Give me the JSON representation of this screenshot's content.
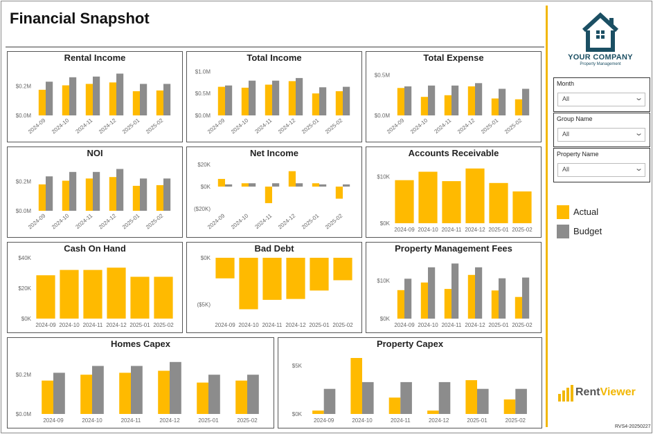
{
  "page": {
    "title": "Financial Snapshot",
    "version": "RVS4-20250227"
  },
  "company": {
    "name": "YOUR COMPANY",
    "subtitle": "Property Management"
  },
  "brand": {
    "rent": "Rent",
    "viewer": "Viewer"
  },
  "colors": {
    "actual": "#FFBA00",
    "budget": "#8C8C8C",
    "accent": "#F2B705",
    "logo": "#1B4F63",
    "axis": "#8A8A8A"
  },
  "filters": [
    {
      "label": "Month",
      "value": "All"
    },
    {
      "label": "Group Name",
      "value": "All"
    },
    {
      "label": "Property Name",
      "value": "All"
    }
  ],
  "legend": {
    "actual": "Actual",
    "budget": "Budget"
  },
  "icons": {
    "dropdown": "chevron-down-icon",
    "logo": "house-logo-icon",
    "brand": "bar-chart-logo-icon"
  },
  "chart_data": [
    {
      "title": "Rental Income",
      "type": "bar",
      "categories": [
        "2024-09",
        "2024-10",
        "2024-11",
        "2024-12",
        "2025-01",
        "2025-02"
      ],
      "ylim": [
        0,
        0.33
      ],
      "yticks": [
        0,
        0.2
      ],
      "ytick_labels": [
        "$0.0M",
        "$0.2M"
      ],
      "rotated_labels": true,
      "series": [
        {
          "name": "Actual",
          "values": [
            0.175,
            0.205,
            0.215,
            0.225,
            0.165,
            0.17
          ]
        },
        {
          "name": "Budget",
          "values": [
            0.23,
            0.26,
            0.265,
            0.285,
            0.215,
            0.215
          ]
        }
      ]
    },
    {
      "title": "Total Income",
      "type": "bar",
      "categories": [
        "2024-09",
        "2024-10",
        "2024-11",
        "2024-12",
        "2025-01",
        "2025-02"
      ],
      "ylim": [
        0,
        1.1
      ],
      "yticks": [
        0,
        0.5,
        1.0
      ],
      "ytick_labels": [
        "$0.0M",
        "$0.5M",
        "$1.0M"
      ],
      "rotated_labels": true,
      "series": [
        {
          "name": "Actual",
          "values": [
            0.65,
            0.63,
            0.7,
            0.78,
            0.5,
            0.55
          ]
        },
        {
          "name": "Budget",
          "values": [
            0.68,
            0.79,
            0.79,
            0.85,
            0.64,
            0.65
          ]
        }
      ]
    },
    {
      "title": "Total Expense",
      "type": "bar",
      "categories": [
        "2024-09",
        "2024-10",
        "2024-11",
        "2024-12",
        "2025-01",
        "2025-02"
      ],
      "ylim": [
        0,
        0.6
      ],
      "yticks": [
        0,
        0.5
      ],
      "ytick_labels": [
        "$0.0M",
        "$0.5M"
      ],
      "rotated_labels": true,
      "series": [
        {
          "name": "Actual",
          "values": [
            0.34,
            0.23,
            0.25,
            0.36,
            0.21,
            0.2
          ]
        },
        {
          "name": "Budget",
          "values": [
            0.36,
            0.37,
            0.37,
            0.4,
            0.33,
            0.33
          ]
        }
      ]
    },
    {
      "title": "NOI",
      "type": "bar",
      "categories": [
        "2024-09",
        "2024-10",
        "2024-11",
        "2024-12",
        "2025-01",
        "2025-02"
      ],
      "ylim": [
        0,
        0.33
      ],
      "yticks": [
        0,
        0.2
      ],
      "ytick_labels": [
        "$0.0M",
        "$0.2M"
      ],
      "rotated_labels": true,
      "series": [
        {
          "name": "Actual",
          "values": [
            0.18,
            0.205,
            0.22,
            0.23,
            0.17,
            0.175
          ]
        },
        {
          "name": "Budget",
          "values": [
            0.235,
            0.265,
            0.265,
            0.285,
            0.22,
            0.22
          ]
        }
      ]
    },
    {
      "title": "Net Income",
      "type": "bar",
      "categories": [
        "2024-09",
        "2024-10",
        "2024-11",
        "2024-12",
        "2025-01",
        "2025-02"
      ],
      "ylim": [
        -22,
        22
      ],
      "yticks": [
        -20,
        0,
        20
      ],
      "ytick_labels": [
        "($20K)",
        "$0K",
        "$20K"
      ],
      "rotated_labels": true,
      "series": [
        {
          "name": "Actual",
          "values": [
            7,
            3,
            -15,
            14,
            3,
            -11
          ]
        },
        {
          "name": "Budget",
          "values": [
            2,
            3,
            3,
            3,
            2,
            2
          ]
        }
      ]
    },
    {
      "title": "Accounts Receivable",
      "type": "bar",
      "categories": [
        "2024-09",
        "2024-10",
        "2024-11",
        "2024-12",
        "2025-01",
        "2025-02"
      ],
      "ylim": [
        0,
        13
      ],
      "yticks": [
        0,
        10
      ],
      "ytick_labels": [
        "$0K",
        "$10K"
      ],
      "rotated_labels": false,
      "series": [
        {
          "name": "Actual",
          "values": [
            9.2,
            11.0,
            9.0,
            11.7,
            8.6,
            6.8
          ]
        }
      ]
    },
    {
      "title": "Cash On Hand",
      "type": "bar",
      "categories": [
        "2024-09",
        "2024-10",
        "2024-11",
        "2024-12",
        "2025-01",
        "2025-02"
      ],
      "ylim": [
        0,
        40
      ],
      "yticks": [
        0,
        20,
        40
      ],
      "ytick_labels": [
        "$0K",
        "$20K",
        "$40K"
      ],
      "rotated_labels": false,
      "series": [
        {
          "name": "Actual",
          "values": [
            28.5,
            32,
            32,
            33.5,
            27.5,
            27.5
          ]
        }
      ]
    },
    {
      "title": "Bad Debt",
      "type": "bar",
      "categories": [
        "2024-09",
        "2024-10",
        "2024-11",
        "2024-12",
        "2025-01",
        "2025-02"
      ],
      "ylim": [
        -6.5,
        0
      ],
      "yticks": [
        -5,
        0
      ],
      "ytick_labels": [
        "($5K)",
        "$0K"
      ],
      "rotated_labels": false,
      "series": [
        {
          "name": "Actual",
          "values": [
            -2.2,
            -5.5,
            -4.5,
            -4.4,
            -3.5,
            -2.4
          ]
        }
      ]
    },
    {
      "title": "Property Management Fees",
      "type": "bar",
      "categories": [
        "2024-09",
        "2024-10",
        "2024-11",
        "2024-12",
        "2025-01",
        "2025-02"
      ],
      "ylim": [
        0,
        16
      ],
      "yticks": [
        0,
        10
      ],
      "ytick_labels": [
        "$0K",
        "$10K"
      ],
      "rotated_labels": false,
      "series": [
        {
          "name": "Actual",
          "values": [
            7.5,
            9.5,
            7.8,
            11.5,
            7.4,
            5.7
          ]
        },
        {
          "name": "Budget",
          "values": [
            10.5,
            13.5,
            14.5,
            13.5,
            10.6,
            10.8
          ]
        }
      ]
    },
    {
      "title": "Homes Capex",
      "type": "bar",
      "categories": [
        "2024-09",
        "2024-10",
        "2024-11",
        "2024-12",
        "2025-01",
        "2025-02"
      ],
      "ylim": [
        0,
        0.31
      ],
      "yticks": [
        0,
        0.2
      ],
      "ytick_labels": [
        "$0.0M",
        "$0.2M"
      ],
      "rotated_labels": false,
      "series": [
        {
          "name": "Actual",
          "values": [
            0.17,
            0.2,
            0.21,
            0.22,
            0.16,
            0.17
          ]
        },
        {
          "name": "Budget",
          "values": [
            0.21,
            0.245,
            0.245,
            0.265,
            0.2,
            0.2
          ]
        }
      ]
    },
    {
      "title": "Property Capex",
      "type": "bar",
      "categories": [
        "2024-09",
        "2024-10",
        "2024-11",
        "2024-12",
        "2025-01",
        "2025-02"
      ],
      "ylim": [
        0,
        6.3
      ],
      "yticks": [
        0,
        5
      ],
      "ytick_labels": [
        "$0K",
        "$5K"
      ],
      "rotated_labels": false,
      "series": [
        {
          "name": "Actual",
          "values": [
            0.35,
            5.8,
            1.7,
            0.35,
            3.5,
            1.5
          ]
        },
        {
          "name": "Budget",
          "values": [
            2.6,
            3.3,
            3.3,
            3.3,
            2.6,
            2.6
          ]
        }
      ]
    }
  ]
}
